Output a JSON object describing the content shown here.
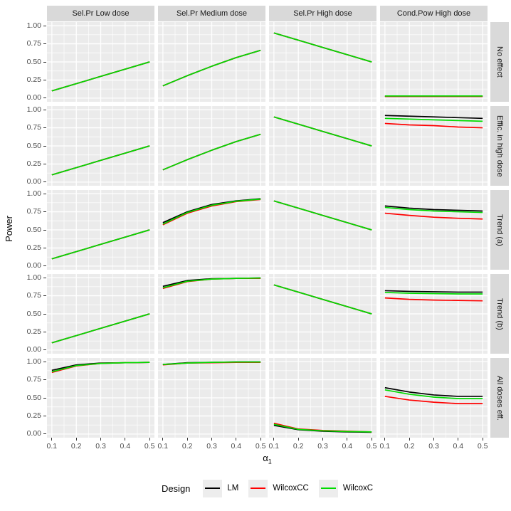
{
  "figure": {
    "y_axis_title": "Power",
    "x_axis_title": {
      "symbol": "α",
      "subscript": "1"
    },
    "y_tick_labels": [
      "1.00",
      "0.75",
      "0.50",
      "0.25",
      "0.00"
    ],
    "y_tick_values": [
      1.0,
      0.75,
      0.5,
      0.25,
      0.0
    ],
    "x_tick_labels": [
      "0.1",
      "0.2",
      "0.3",
      "0.4",
      "0.5"
    ],
    "x_tick_values": [
      0.1,
      0.2,
      0.3,
      0.4,
      0.5
    ]
  },
  "legend": {
    "title": "Design",
    "entries": [
      {
        "label": "LM",
        "color": "#000000"
      },
      {
        "label": "WilcoxCC",
        "color": "#ff0000"
      },
      {
        "label": "WilcoxC",
        "color": "#00dc00"
      }
    ]
  },
  "chart_data": {
    "type": "line",
    "title": "",
    "xlabel": "alpha_1",
    "ylabel": "Power",
    "x": [
      0.1,
      0.2,
      0.3,
      0.4,
      0.5
    ],
    "xlim": [
      0.08,
      0.52
    ],
    "ylim": [
      -0.05,
      1.05
    ],
    "grid": "on",
    "legend_position": "bottom",
    "facet_columns": [
      "Sel.Pr Low dose",
      "Sel.Pr Medium dose",
      "Sel.Pr High dose",
      "Cond.Pow High dose"
    ],
    "facet_rows": [
      "No effect",
      "Effic. in high dose",
      "Trend (a)",
      "Trend (b)",
      "All doses eff."
    ],
    "series_order": [
      "LM",
      "WilcoxCC",
      "WilcoxC"
    ],
    "series_colors": {
      "LM": "#000000",
      "WilcoxCC": "#ff0000",
      "WilcoxC": "#00dc00"
    },
    "panels": [
      {
        "row_label": "No effect",
        "cells": [
          {
            "LM": [
              0.1,
              0.2,
              0.3,
              0.4,
              0.5
            ],
            "WilcoxCC": [
              0.1,
              0.2,
              0.3,
              0.4,
              0.5
            ],
            "WilcoxC": [
              0.1,
              0.2,
              0.3,
              0.4,
              0.5
            ]
          },
          {
            "LM": [
              0.17,
              0.31,
              0.44,
              0.56,
              0.66
            ],
            "WilcoxCC": [
              0.17,
              0.31,
              0.44,
              0.56,
              0.66
            ],
            "WilcoxC": [
              0.17,
              0.31,
              0.44,
              0.56,
              0.66
            ]
          },
          {
            "LM": [
              0.9,
              0.8,
              0.7,
              0.6,
              0.5
            ],
            "WilcoxCC": [
              0.9,
              0.8,
              0.7,
              0.6,
              0.5
            ],
            "WilcoxC": [
              0.9,
              0.8,
              0.7,
              0.6,
              0.5
            ]
          },
          {
            "LM": [
              0.025,
              0.025,
              0.025,
              0.025,
              0.025
            ],
            "WilcoxCC": [
              0.025,
              0.025,
              0.025,
              0.025,
              0.025
            ],
            "WilcoxC": [
              0.03,
              0.03,
              0.03,
              0.03,
              0.03
            ]
          }
        ]
      },
      {
        "row_label": "Effic. in high dose",
        "cells": [
          {
            "LM": [
              0.1,
              0.2,
              0.3,
              0.4,
              0.5
            ],
            "WilcoxCC": [
              0.1,
              0.2,
              0.3,
              0.4,
              0.5
            ],
            "WilcoxC": [
              0.1,
              0.2,
              0.3,
              0.4,
              0.5
            ]
          },
          {
            "LM": [
              0.17,
              0.31,
              0.44,
              0.56,
              0.66
            ],
            "WilcoxCC": [
              0.17,
              0.31,
              0.44,
              0.56,
              0.66
            ],
            "WilcoxC": [
              0.17,
              0.31,
              0.44,
              0.56,
              0.66
            ]
          },
          {
            "LM": [
              0.9,
              0.8,
              0.7,
              0.6,
              0.5
            ],
            "WilcoxCC": [
              0.9,
              0.8,
              0.7,
              0.6,
              0.5
            ],
            "WilcoxC": [
              0.9,
              0.8,
              0.7,
              0.6,
              0.5
            ]
          },
          {
            "LM": [
              0.92,
              0.91,
              0.9,
              0.89,
              0.88
            ],
            "WilcoxCC": [
              0.81,
              0.79,
              0.78,
              0.76,
              0.75
            ],
            "WilcoxC": [
              0.88,
              0.87,
              0.86,
              0.85,
              0.84
            ]
          }
        ]
      },
      {
        "row_label": "Trend (a)",
        "cells": [
          {
            "LM": [
              0.1,
              0.2,
              0.3,
              0.4,
              0.5
            ],
            "WilcoxCC": [
              0.1,
              0.2,
              0.3,
              0.4,
              0.5
            ],
            "WilcoxC": [
              0.1,
              0.2,
              0.3,
              0.4,
              0.5
            ]
          },
          {
            "LM": [
              0.6,
              0.75,
              0.85,
              0.9,
              0.93
            ],
            "WilcoxCC": [
              0.57,
              0.73,
              0.83,
              0.89,
              0.92
            ],
            "WilcoxC": [
              0.58,
              0.74,
              0.84,
              0.895,
              0.925
            ]
          },
          {
            "LM": [
              0.9,
              0.8,
              0.7,
              0.6,
              0.5
            ],
            "WilcoxCC": [
              0.9,
              0.8,
              0.7,
              0.6,
              0.5
            ],
            "WilcoxC": [
              0.9,
              0.8,
              0.7,
              0.6,
              0.5
            ]
          },
          {
            "LM": [
              0.83,
              0.8,
              0.78,
              0.77,
              0.76
            ],
            "WilcoxCC": [
              0.73,
              0.7,
              0.675,
              0.66,
              0.65
            ],
            "WilcoxC": [
              0.81,
              0.78,
              0.76,
              0.75,
              0.74
            ]
          }
        ]
      },
      {
        "row_label": "Trend (b)",
        "cells": [
          {
            "LM": [
              0.1,
              0.2,
              0.3,
              0.4,
              0.5
            ],
            "WilcoxCC": [
              0.1,
              0.2,
              0.3,
              0.4,
              0.5
            ],
            "WilcoxC": [
              0.1,
              0.2,
              0.3,
              0.4,
              0.5
            ]
          },
          {
            "LM": [
              0.88,
              0.96,
              0.985,
              0.99,
              0.995
            ],
            "WilcoxCC": [
              0.85,
              0.945,
              0.98,
              0.99,
              0.99
            ],
            "WilcoxC": [
              0.86,
              0.95,
              0.98,
              0.99,
              0.995
            ]
          },
          {
            "LM": [
              0.9,
              0.8,
              0.7,
              0.6,
              0.5
            ],
            "WilcoxCC": [
              0.9,
              0.8,
              0.7,
              0.6,
              0.5
            ],
            "WilcoxC": [
              0.9,
              0.8,
              0.7,
              0.6,
              0.5
            ]
          },
          {
            "LM": [
              0.82,
              0.81,
              0.805,
              0.8,
              0.8
            ],
            "WilcoxCC": [
              0.72,
              0.7,
              0.69,
              0.685,
              0.68
            ],
            "WilcoxC": [
              0.795,
              0.785,
              0.78,
              0.775,
              0.775
            ]
          }
        ]
      },
      {
        "row_label": "All doses eff.",
        "cells": [
          {
            "LM": [
              0.88,
              0.955,
              0.98,
              0.985,
              0.99
            ],
            "WilcoxCC": [
              0.85,
              0.94,
              0.975,
              0.985,
              0.99
            ],
            "WilcoxC": [
              0.86,
              0.945,
              0.975,
              0.985,
              0.99
            ]
          },
          {
            "LM": [
              0.96,
              0.985,
              0.99,
              0.995,
              0.995
            ],
            "WilcoxCC": [
              0.955,
              0.98,
              0.985,
              0.99,
              0.99
            ],
            "WilcoxC": [
              0.96,
              0.98,
              0.99,
              0.995,
              0.995
            ]
          },
          {
            "LM": [
              0.12,
              0.06,
              0.04,
              0.03,
              0.025
            ],
            "WilcoxCC": [
              0.15,
              0.07,
              0.05,
              0.04,
              0.03
            ],
            "WilcoxC": [
              0.135,
              0.065,
              0.045,
              0.035,
              0.03
            ]
          },
          {
            "LM": [
              0.64,
              0.58,
              0.54,
              0.52,
              0.52
            ],
            "WilcoxCC": [
              0.52,
              0.47,
              0.44,
              0.42,
              0.42
            ],
            "WilcoxC": [
              0.61,
              0.55,
              0.51,
              0.49,
              0.49
            ]
          }
        ]
      }
    ]
  }
}
